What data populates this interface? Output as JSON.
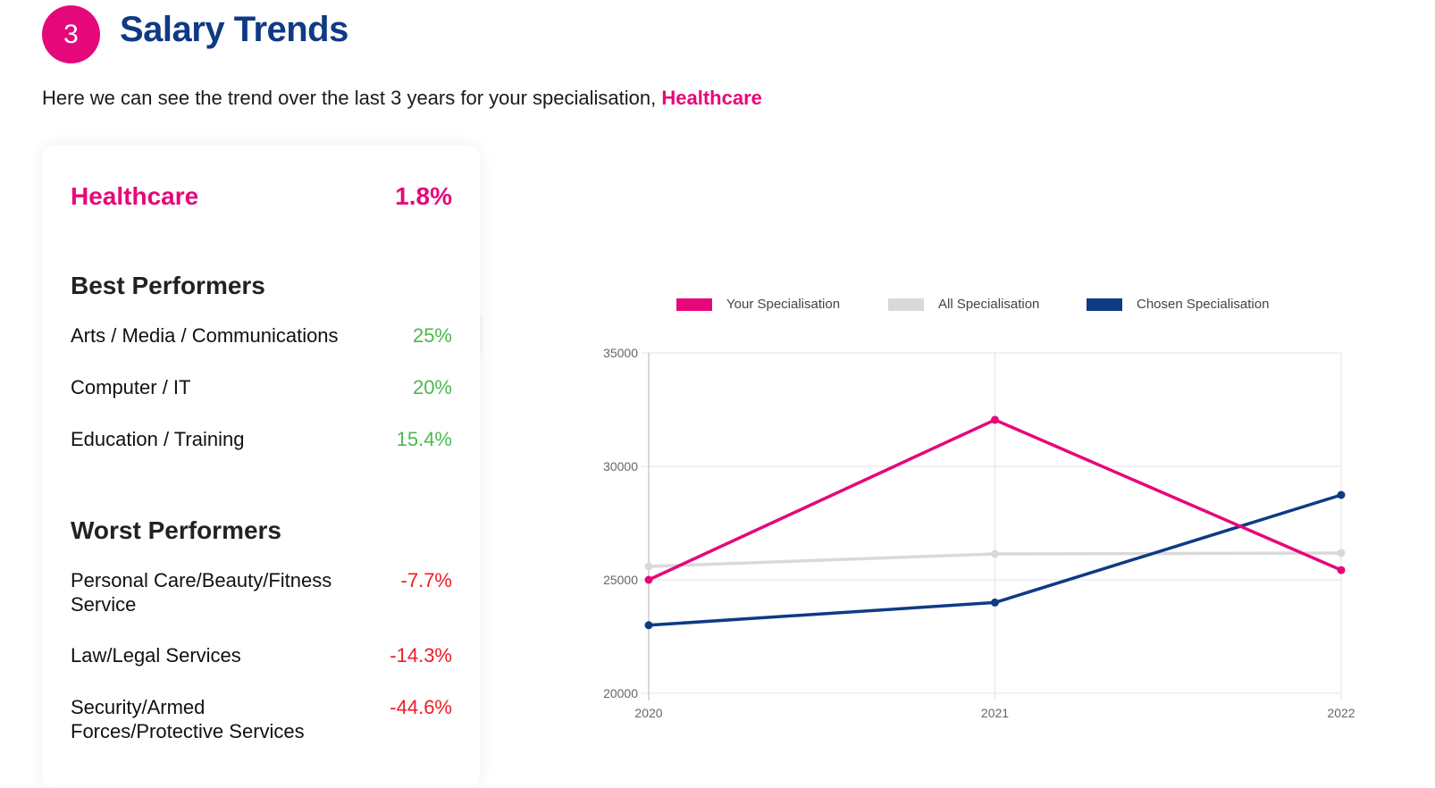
{
  "header": {
    "step_number": "3",
    "title": "Salary Trends",
    "intro_text": "Here we can see the trend over the last 3 years for your specialisation, ",
    "intro_highlight": "Healthcare"
  },
  "card": {
    "specialisation": {
      "label": "Healthcare",
      "value": "1.8%"
    },
    "best_heading": "Best Performers",
    "best": [
      {
        "label": "Arts / Media / Communications",
        "value": "25%",
        "highlighted": true
      },
      {
        "label": "Computer / IT",
        "value": "20%"
      },
      {
        "label": "Education / Training",
        "value": "15.4%"
      }
    ],
    "worst_heading": "Worst Performers",
    "worst": [
      {
        "label": "Personal Care/Beauty/Fitness Service",
        "value": "-7.7%"
      },
      {
        "label": "Law/Legal Services",
        "value": "-14.3%"
      },
      {
        "label": "Security/Armed Forces/Protective Services",
        "value": "-44.6%"
      }
    ]
  },
  "colors": {
    "accent_pink": "#e6077a",
    "navy": "#0f3a84",
    "grey": "#d9d9d9",
    "positive": "#4cb84c",
    "negative": "#ee1c25"
  },
  "chart_data": {
    "type": "line",
    "title": "",
    "xlabel": "",
    "ylabel": "",
    "x": [
      "2020",
      "2021",
      "2022"
    ],
    "ylim": [
      20000,
      35000
    ],
    "yticks": [
      "35000",
      "30000",
      "25000",
      "20000"
    ],
    "grid": true,
    "legend_position": "top",
    "series": [
      {
        "name": "Your Specialisation",
        "color": "#e6077a",
        "values": [
          25000,
          32050,
          25430
        ]
      },
      {
        "name": "All Specialisation",
        "color": "#d9d9d9",
        "values": [
          25590,
          26140,
          26180
        ]
      },
      {
        "name": "Chosen Specialisation",
        "color": "#0f3a84",
        "values": [
          23000,
          24000,
          28740
        ]
      }
    ]
  }
}
